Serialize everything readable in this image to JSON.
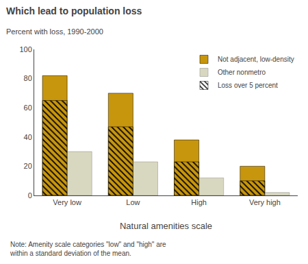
{
  "chart_data": {
    "type": "bar",
    "title": "Which lead to population loss",
    "subtitle": "Percent with loss, 1990-2000",
    "note": "Note: Amenity scale categories \"low\" and \"high\" are\nwithin a standard deviation of the mean.",
    "xlabel": "Natural amenities scale",
    "categories": [
      "Very low",
      "Low",
      "High",
      "Very high"
    ],
    "series": [
      {
        "name": "Not adjacent, low-density",
        "color": "#C8960C",
        "values": [
          82,
          70,
          38,
          20
        ]
      },
      {
        "name": "Other nonmetro",
        "color": "#D8D8C0",
        "values": [
          30,
          23,
          12,
          2
        ]
      },
      {
        "name": "Loss over 5 percent",
        "color": "#C8960C",
        "marker": "hatch",
        "values": [
          65,
          47,
          23,
          10
        ]
      }
    ],
    "ylim": [
      0,
      100
    ],
    "yticks": [
      0,
      20,
      40,
      60,
      80,
      100
    ],
    "grid": false,
    "legend": "upper right"
  }
}
